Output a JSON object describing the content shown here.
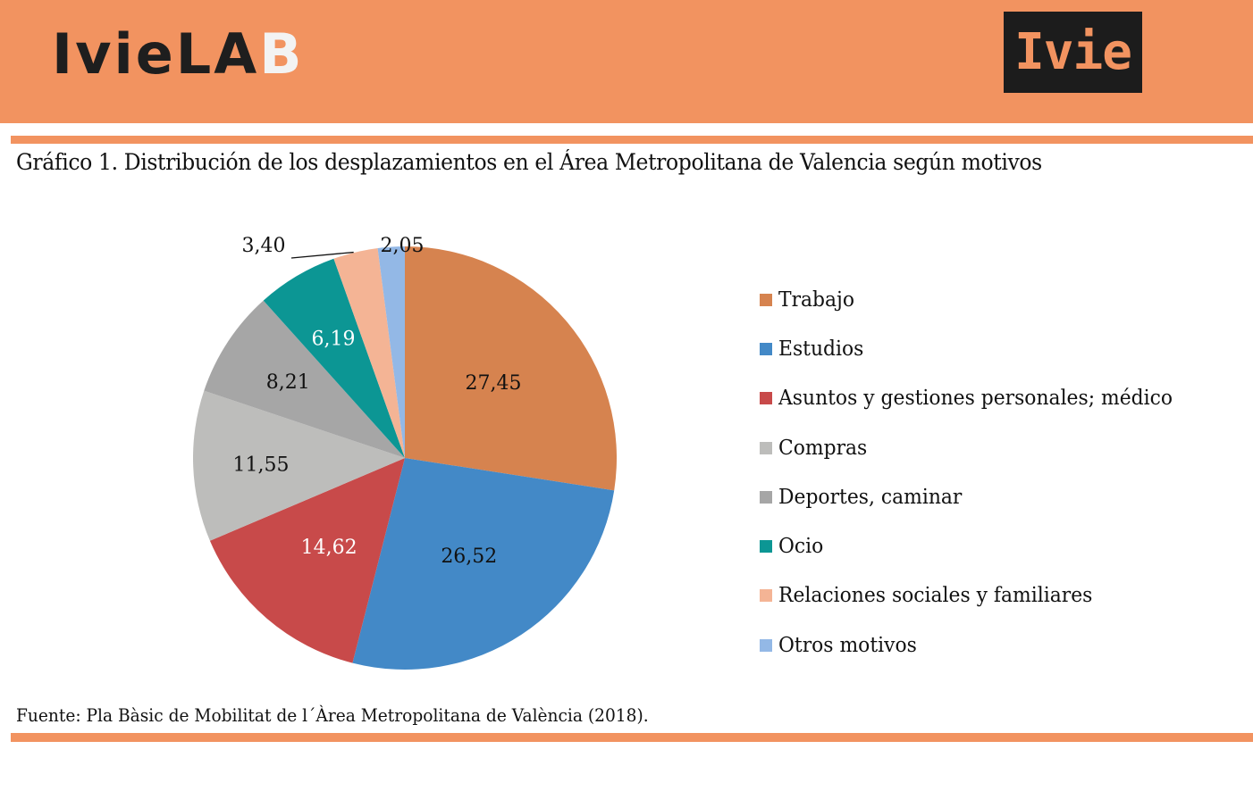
{
  "header": {
    "left_logo": {
      "main": "IvieLA",
      "accent": "B"
    },
    "right_logo": "Ivie",
    "brand_color": "#f29360"
  },
  "title": "Gráfico 1. Distribución de los desplazamientos en el Área Metropolitana de Valencia según motivos",
  "source": "Fuente: Pla Bàsic de Mobilitat de l´Àrea Metropolitana de València (2018).",
  "chart_data": {
    "type": "pie",
    "title": "Distribución de los desplazamientos en el Área Metropolitana de Valencia según motivos",
    "start_angle": "12 o'clock",
    "direction": "clockwise",
    "legend_position": "right",
    "slices": [
      {
        "label": "Trabajo",
        "value": 27.45,
        "display": "27,45",
        "color": "#d6834f",
        "label_color": "#111111"
      },
      {
        "label": "Estudios",
        "value": 26.52,
        "display": "26,52",
        "color": "#4389c7",
        "label_color": "#111111"
      },
      {
        "label": "Asuntos y gestiones personales; médico",
        "value": 14.62,
        "display": "14,62",
        "color": "#c84a4a",
        "label_color": "#ffffff"
      },
      {
        "label": "Compras",
        "value": 11.55,
        "display": "11,55",
        "color": "#bdbdbb",
        "label_color": "#111111"
      },
      {
        "label": "Deportes, caminar",
        "value": 8.21,
        "display": "8,21",
        "color": "#a6a6a6",
        "label_color": "#111111"
      },
      {
        "label": "Ocio",
        "value": 6.19,
        "display": "6,19",
        "color": "#0c9694",
        "label_color": "#ffffff"
      },
      {
        "label": "Relaciones sociales y familiares",
        "value": 3.4,
        "display": "3,40",
        "color": "#f4b495",
        "label_color": "#111111",
        "label_outside": true
      },
      {
        "label": "Otros motivos",
        "value": 2.05,
        "display": "2,05",
        "color": "#93b8e6",
        "label_color": "#111111",
        "label_outside": true
      }
    ]
  }
}
